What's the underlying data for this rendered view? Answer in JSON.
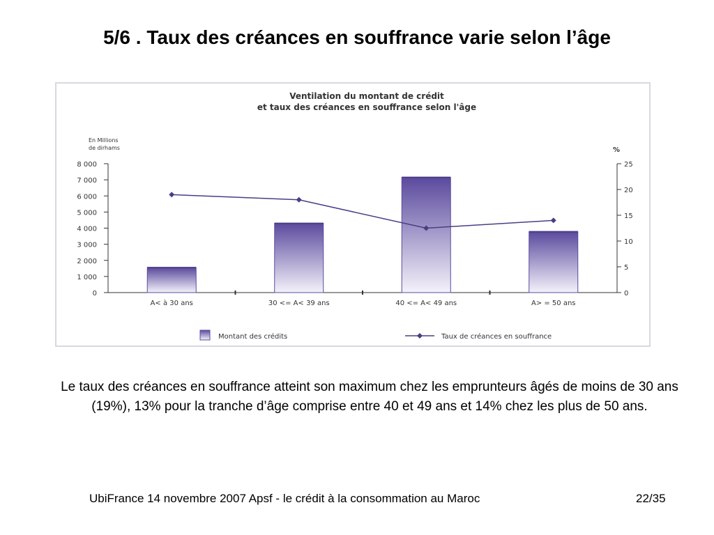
{
  "slide": {
    "title": "5/6 . Taux des créances en souffrance varie selon l’âge",
    "caption": "Le taux des créances en souffrance atteint son maximum chez les emprunteurs âgés de moins de 30 ans (19%), 13% pour la tranche d’âge comprise entre 40 et 49 ans et  14% chez les plus de 50 ans.",
    "footer_left": "UbiFrance 14 novembre 2007  Apsf - le crédit à la consommation au Maroc",
    "footer_right": "22/35"
  },
  "chart_data": {
    "type": "bar",
    "title": "Ventilation du montant de crédit",
    "subtitle": "et taux des créances en souffrance selon l'âge",
    "y_left_label_line1": "En Millions",
    "y_left_label_line2": "de dirhams",
    "y_right_label": "%",
    "categories": [
      "A< à 30 ans",
      "30 <= A< 39 ans",
      "40 <= A< 49 ans",
      "A> = 50 ans"
    ],
    "y_left_ticks": [
      "0",
      "1 000",
      "2 000",
      "3 000",
      "4 000",
      "5 000",
      "6 000",
      "7 000",
      "8 000"
    ],
    "y_right_ticks": [
      "0",
      "5",
      "10",
      "15",
      "20",
      "25"
    ],
    "ylim_left": [
      0,
      8000
    ],
    "ylim_right": [
      0,
      25
    ],
    "series": [
      {
        "name": "Montant des crédits",
        "kind": "bar",
        "axis": "left",
        "values": [
          1550,
          4300,
          7150,
          3780
        ],
        "color_top": "#5b4a9e",
        "color_bottom": "#f4f2fa"
      },
      {
        "name": "Taux de créances en souffrance",
        "kind": "line",
        "axis": "right",
        "values": [
          19,
          18,
          12.5,
          14
        ],
        "color": "#4a3d85"
      }
    ],
    "legend_position": "bottom"
  }
}
